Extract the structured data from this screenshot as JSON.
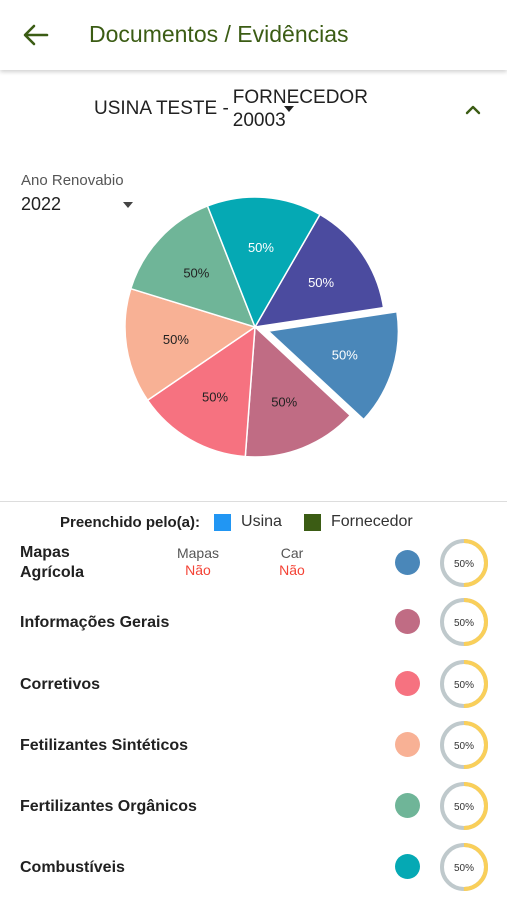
{
  "header": {
    "title": "Documentos / Evidências"
  },
  "selector": {
    "left_text": "USINA TESTE -",
    "right_line1": "FORNECEDOR",
    "right_line2": "20003"
  },
  "year": {
    "label": "Ano Renovabio",
    "value": "2022"
  },
  "chart_data": {
    "type": "pie",
    "slices": [
      {
        "label": "50%",
        "value": 1,
        "color": "#4b4b9f"
      },
      {
        "label": "50%",
        "value": 1,
        "color": "#4a87b9",
        "exploded": true
      },
      {
        "label": "50%",
        "value": 1,
        "color": "#c06c84"
      },
      {
        "label": "50%",
        "value": 1,
        "color": "#f67280"
      },
      {
        "label": "50%",
        "value": 1,
        "color": "#f8b195"
      },
      {
        "label": "50%",
        "value": 1,
        "color": "#6fb598"
      },
      {
        "label": "50%",
        "value": 1,
        "color": "#05a9b4"
      }
    ]
  },
  "legend": {
    "title": "Preenchido pelo(a):",
    "items": [
      {
        "label": "Usina",
        "color": "#2196f3"
      },
      {
        "label": "Fornecedor",
        "color": "#3b5c14"
      }
    ]
  },
  "rows": [
    {
      "label_line1": "Mapas",
      "label_line2": "Agrícola",
      "dot_color": "#4a87b9",
      "progress_label": "50%",
      "progress": 0.5,
      "sub": [
        {
          "head": "Mapas",
          "value": "Não"
        },
        {
          "head": "Car",
          "value": "Não"
        }
      ]
    },
    {
      "label_line1": "Informações Gerais",
      "label_line2": "",
      "dot_color": "#c06c84",
      "progress_label": "50%",
      "progress": 0.5
    },
    {
      "label_line1": "Corretivos",
      "label_line2": "",
      "dot_color": "#f67280",
      "progress_label": "50%",
      "progress": 0.5
    },
    {
      "label_line1": "Fetilizantes Sintéticos",
      "label_line2": "",
      "dot_color": "#f8b195",
      "progress_label": "50%",
      "progress": 0.5
    },
    {
      "label_line1": "Fertilizantes Orgânicos",
      "label_line2": "",
      "dot_color": "#6fb598",
      "progress_label": "50%",
      "progress": 0.5
    },
    {
      "label_line1": "Combustíveis",
      "label_line2": "",
      "dot_color": "#05a9b4",
      "progress_label": "50%",
      "progress": 0.5
    }
  ],
  "colors": {
    "accent": "#3b5c14",
    "ring_track": "#bfc9cc",
    "ring_fill": "#f9cf5a",
    "negative": "#f44336"
  },
  "icons": {
    "back": "arrow-left-icon",
    "collapse": "chevron-up-icon",
    "dropdown": "caret-down-icon"
  }
}
